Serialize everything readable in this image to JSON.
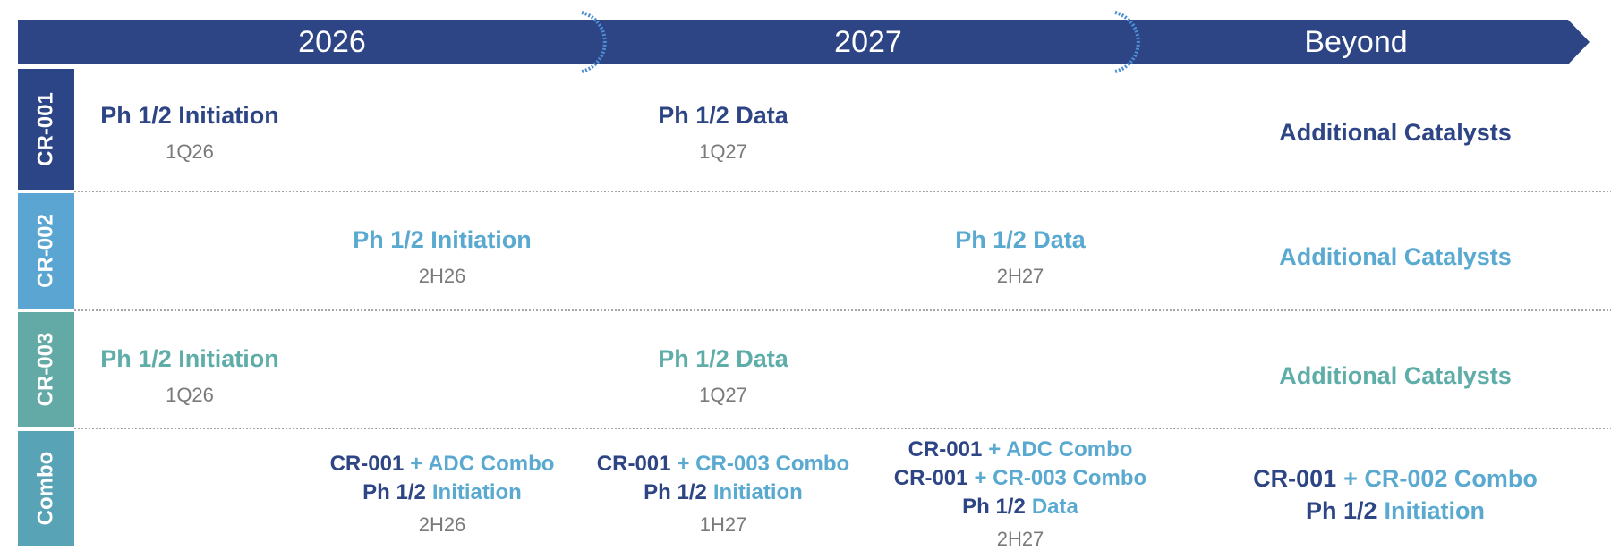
{
  "header": {
    "periods": [
      "2026",
      "2027",
      "Beyond"
    ]
  },
  "rows": [
    {
      "label": "CR-001",
      "events": [
        {
          "title": "Ph 1/2 Initiation",
          "date": "1Q26"
        },
        {
          "title": "Ph 1/2 Data",
          "date": "1Q27"
        }
      ],
      "beyond": "Additional Catalysts"
    },
    {
      "label": "CR-002",
      "events": [
        {
          "title": "Ph 1/2 Initiation",
          "date": "2H26"
        },
        {
          "title": "Ph 1/2 Data",
          "date": "2H27"
        }
      ],
      "beyond": "Additional Catalysts"
    },
    {
      "label": "CR-003",
      "events": [
        {
          "title": "Ph 1/2 Initiation",
          "date": "1Q26"
        },
        {
          "title": "Ph 1/2 Data",
          "date": "1Q27"
        }
      ],
      "beyond": "Additional Catalysts"
    },
    {
      "label": "Combo",
      "events": [
        {
          "lines": [
            [
              "CR-001",
              "+ ADC Combo"
            ],
            [
              "Ph 1/2",
              "Initiation"
            ]
          ],
          "date": "2H26"
        },
        {
          "lines": [
            [
              "CR-001",
              "+ CR-003 Combo"
            ],
            [
              "Ph 1/2",
              "Initiation"
            ]
          ],
          "date": "1H27"
        },
        {
          "lines": [
            [
              "CR-001",
              "+ ADC Combo"
            ],
            [
              "CR-001",
              "+ CR-003 Combo"
            ],
            [
              "Ph 1/2",
              "Data"
            ]
          ],
          "date": "2H27"
        }
      ],
      "beyond": {
        "lines": [
          [
            "CR-001",
            "+ CR-002 Combo"
          ],
          [
            "Ph 1/2",
            "Initiation"
          ]
        ]
      }
    }
  ]
}
